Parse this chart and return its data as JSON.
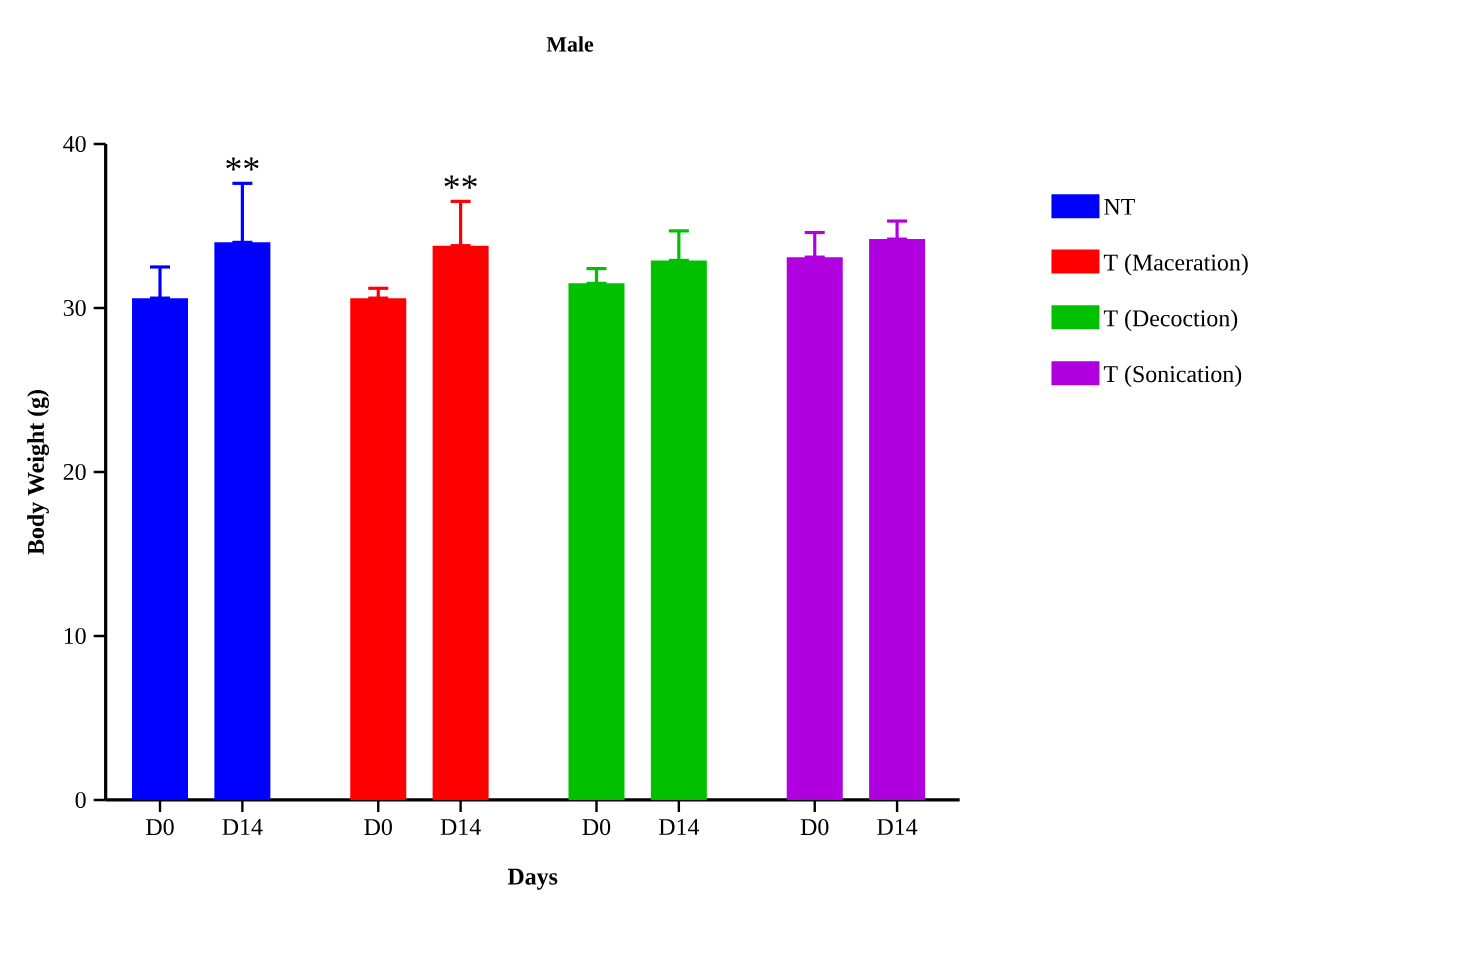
{
  "chart_data": {
    "type": "bar",
    "title": "Male",
    "xlabel": "Days",
    "ylabel": "Body Weight (g)",
    "categories": [
      "D0",
      "D14",
      "D0",
      "D14",
      "D0",
      "D14",
      "D0",
      "D14"
    ],
    "series": [
      {
        "name": "NT",
        "color": "#0000ff",
        "values": [
          30.6,
          34.0,
          null,
          null,
          null,
          null,
          null,
          null
        ],
        "errors": [
          [
            30.6,
            32.5
          ],
          [
            34.0,
            37.6
          ],
          null,
          null,
          null,
          null,
          null,
          null
        ],
        "value_labels": [
          null,
          "**",
          null,
          null,
          null,
          null,
          null,
          null
        ]
      },
      {
        "name": "T (Maceration)",
        "color": "#ff0000",
        "values": [
          null,
          null,
          30.6,
          33.8,
          null,
          null,
          null,
          null
        ],
        "errors": [
          null,
          null,
          [
            30.6,
            31.2
          ],
          [
            33.8,
            36.5
          ],
          null,
          null,
          null,
          null
        ],
        "value_labels": [
          null,
          null,
          null,
          "**",
          null,
          null,
          null,
          null
        ]
      },
      {
        "name": "T (Decoction)",
        "color": "#00c000",
        "values": [
          null,
          null,
          null,
          null,
          31.5,
          32.9,
          null,
          null
        ],
        "errors": [
          null,
          null,
          null,
          null,
          [
            31.5,
            32.4
          ],
          [
            32.9,
            34.7
          ],
          null,
          null
        ]
      },
      {
        "name": "T (Sonication)",
        "color": "#b000e0",
        "values": [
          null,
          null,
          null,
          null,
          null,
          null,
          33.1,
          34.2
        ],
        "errors": [
          null,
          null,
          null,
          null,
          null,
          null,
          [
            33.1,
            34.6
          ],
          [
            34.2,
            35.3
          ]
        ]
      }
    ],
    "ylim": [
      0,
      40
    ],
    "yticks": [
      0,
      10,
      20,
      30,
      40
    ],
    "legend": "right"
  }
}
